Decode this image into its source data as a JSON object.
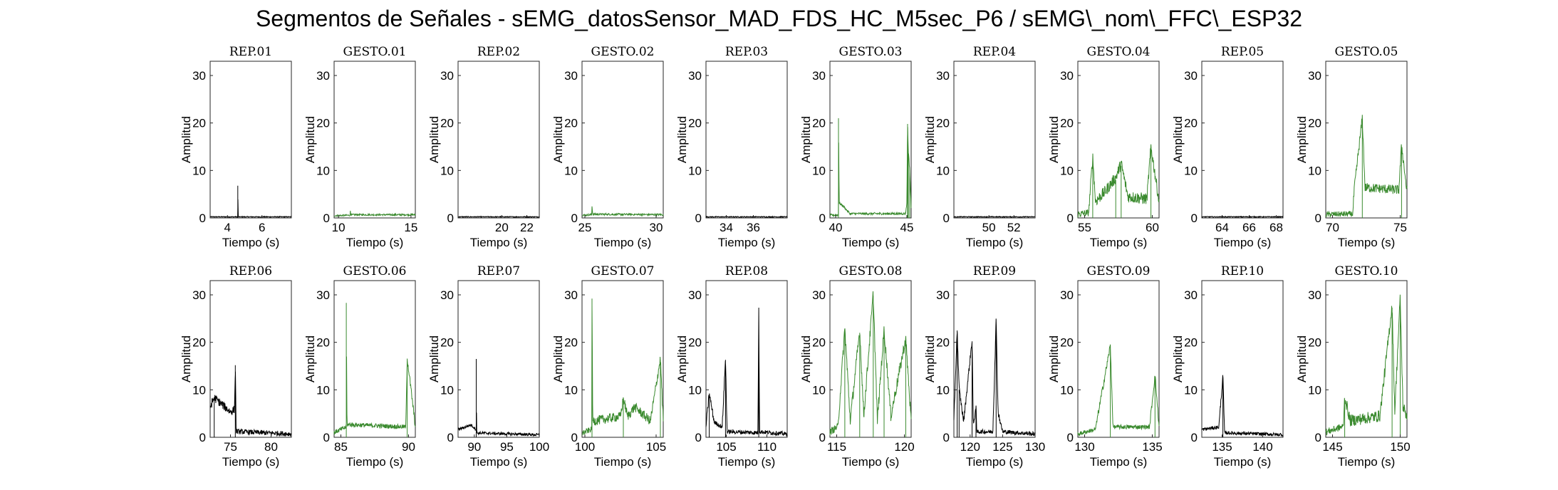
{
  "title": "Segmentos de Señales - sEMG_datosSensor_MAD_FDS_HC_M5sec_P6 / sEMG\\_nom\\_FFC\\_ESP32",
  "colors": {
    "rep": "#000000",
    "gesto": "#3a8a2e"
  },
  "chart_data": [
    {
      "type": "line",
      "title": "REP_01",
      "kind": "rep",
      "xlabel": "Tiempo (s)",
      "ylabel": "Amplitud",
      "xlim": [
        3,
        7.7
      ],
      "ylim": [
        0,
        33
      ],
      "xticks": [
        4,
        6
      ],
      "yticks": [
        0,
        10,
        20,
        30
      ],
      "noise": 0.3,
      "points": [
        [
          3,
          0.2
        ],
        [
          4.6,
          0.2
        ],
        [
          4.6,
          6.8
        ],
        [
          4.62,
          0.2
        ],
        [
          7.7,
          0.2
        ]
      ]
    },
    {
      "type": "line",
      "title": "GESTO_01",
      "kind": "gesto",
      "xlabel": "Tiempo (s)",
      "ylabel": "Amplitud",
      "xlim": [
        9.7,
        15.3
      ],
      "ylim": [
        0,
        33
      ],
      "xticks": [
        10,
        15
      ],
      "yticks": [
        0,
        10,
        20,
        30
      ],
      "noise": 0.6,
      "points": [
        [
          9.7,
          0.4
        ],
        [
          10.8,
          0.5
        ],
        [
          10.8,
          2.0
        ],
        [
          10.85,
          0.6
        ],
        [
          15.3,
          0.6
        ]
      ]
    },
    {
      "type": "line",
      "title": "REP_02",
      "kind": "rep",
      "xlabel": "Tiempo (s)",
      "ylabel": "Amplitud",
      "xlim": [
        16.5,
        23
      ],
      "ylim": [
        0,
        33
      ],
      "xticks": [
        20,
        22
      ],
      "yticks": [
        0,
        10,
        20,
        30
      ],
      "noise": 0.3,
      "points": [
        [
          16.5,
          0.2
        ],
        [
          23,
          0.2
        ]
      ]
    },
    {
      "type": "line",
      "title": "GESTO_02",
      "kind": "gesto",
      "xlabel": "Tiempo (s)",
      "ylabel": "Amplitud",
      "xlim": [
        24.8,
        30.5
      ],
      "ylim": [
        0,
        33
      ],
      "xticks": [
        25,
        30
      ],
      "yticks": [
        0,
        10,
        20,
        30
      ],
      "noise": 0.7,
      "points": [
        [
          24.8,
          0.5
        ],
        [
          25.5,
          0.6
        ],
        [
          25.5,
          2.5
        ],
        [
          25.55,
          0.7
        ],
        [
          30.5,
          0.6
        ]
      ]
    },
    {
      "type": "line",
      "title": "REP_03",
      "kind": "rep",
      "xlabel": "Tiempo (s)",
      "ylabel": "Amplitud",
      "xlim": [
        32.5,
        38.5
      ],
      "ylim": [
        0,
        33
      ],
      "xticks": [
        34,
        36
      ],
      "yticks": [
        0,
        10,
        20,
        30
      ],
      "noise": 0.3,
      "points": [
        [
          32.5,
          0.2
        ],
        [
          38.5,
          0.2
        ]
      ]
    },
    {
      "type": "line",
      "title": "GESTO_03",
      "kind": "gesto",
      "xlabel": "Tiempo (s)",
      "ylabel": "Amplitud",
      "xlim": [
        39.6,
        45.3
      ],
      "ylim": [
        0,
        33
      ],
      "xticks": [
        40,
        45
      ],
      "yticks": [
        0,
        10,
        20,
        30
      ],
      "noise": 0.8,
      "points": [
        [
          39.6,
          0.5
        ],
        [
          40.2,
          0.5
        ],
        [
          40.2,
          21
        ],
        [
          40.25,
          3
        ],
        [
          40.5,
          2.5
        ],
        [
          41,
          0.8
        ],
        [
          44.9,
          0.8
        ],
        [
          45,
          3
        ],
        [
          45.05,
          19.8
        ],
        [
          45.1,
          14
        ],
        [
          45.2,
          10
        ],
        [
          45.3,
          2
        ]
      ]
    },
    {
      "type": "line",
      "title": "REP_04",
      "kind": "rep",
      "xlabel": "Tiempo (s)",
      "ylabel": "Amplitud",
      "xlim": [
        47.2,
        53.7
      ],
      "ylim": [
        0,
        33
      ],
      "xticks": [
        50,
        52
      ],
      "yticks": [
        0,
        10,
        20,
        30
      ],
      "noise": 0.3,
      "points": [
        [
          47.2,
          0.2
        ],
        [
          53.7,
          0.2
        ]
      ]
    },
    {
      "type": "line",
      "title": "GESTO_04",
      "kind": "gesto",
      "xlabel": "Tiempo (s)",
      "ylabel": "Amplitud",
      "xlim": [
        54.5,
        60.5
      ],
      "ylim": [
        0,
        33
      ],
      "xticks": [
        55,
        60
      ],
      "yticks": [
        0,
        10,
        20,
        30
      ],
      "noise": 2.5,
      "points": [
        [
          54.5,
          0.5
        ],
        [
          55.3,
          0.8
        ],
        [
          55.6,
          12.5
        ],
        [
          55.8,
          3
        ],
        [
          56.5,
          5
        ],
        [
          57.3,
          8
        ],
        [
          57.7,
          11
        ],
        [
          58.2,
          4
        ],
        [
          59.6,
          3.5
        ],
        [
          59.9,
          14.5
        ],
        [
          60.5,
          3
        ]
      ]
    },
    {
      "type": "line",
      "title": "REP_05",
      "kind": "rep",
      "xlabel": "Tiempo (s)",
      "ylabel": "Amplitud",
      "xlim": [
        62.5,
        68.5
      ],
      "ylim": [
        0,
        33
      ],
      "xticks": [
        64,
        66,
        68
      ],
      "yticks": [
        0,
        10,
        20,
        30
      ],
      "noise": 0.3,
      "points": [
        [
          62.5,
          0.2
        ],
        [
          68.5,
          0.2
        ]
      ]
    },
    {
      "type": "line",
      "title": "GESTO_05",
      "kind": "gesto",
      "xlabel": "Tiempo (s)",
      "ylabel": "Amplitud",
      "xlim": [
        69.5,
        75.5
      ],
      "ylim": [
        0,
        33
      ],
      "xticks": [
        70,
        75
      ],
      "yticks": [
        0,
        10,
        20,
        30
      ],
      "noise": 2.0,
      "points": [
        [
          69.5,
          0.5
        ],
        [
          71.5,
          0.6
        ],
        [
          71.6,
          5.5
        ],
        [
          72.2,
          20.7
        ],
        [
          72.4,
          6
        ],
        [
          74.9,
          5.5
        ],
        [
          75.1,
          15
        ],
        [
          75.5,
          5
        ]
      ]
    },
    {
      "type": "line",
      "title": "REP_06",
      "kind": "rep",
      "xlabel": "Tiempo (s)",
      "ylabel": "Amplitud",
      "xlim": [
        72.5,
        82.5
      ],
      "ylim": [
        0,
        33
      ],
      "xticks": [
        75,
        80
      ],
      "yticks": [
        0,
        10,
        20,
        30
      ],
      "noise": 1.8,
      "points": [
        [
          72.5,
          6
        ],
        [
          73,
          8
        ],
        [
          75,
          5
        ],
        [
          75.5,
          5.5
        ],
        [
          75.6,
          15.2
        ],
        [
          75.7,
          1
        ],
        [
          82.5,
          0.5
        ]
      ]
    },
    {
      "type": "line",
      "title": "GESTO_06",
      "kind": "gesto",
      "xlabel": "Tiempo (s)",
      "ylabel": "Amplitud",
      "xlim": [
        84.5,
        90.5
      ],
      "ylim": [
        0,
        33
      ],
      "xticks": [
        85,
        90
      ],
      "yticks": [
        0,
        10,
        20,
        30
      ],
      "noise": 1.6,
      "points": [
        [
          84.5,
          0.8
        ],
        [
          85.4,
          2
        ],
        [
          85.4,
          28.3
        ],
        [
          85.45,
          2.5
        ],
        [
          89.8,
          2
        ],
        [
          89.9,
          16.5
        ],
        [
          90.5,
          2
        ]
      ]
    },
    {
      "type": "line",
      "title": "REP_07",
      "kind": "rep",
      "xlabel": "Tiempo (s)",
      "ylabel": "Amplitud",
      "xlim": [
        87.5,
        100
      ],
      "ylim": [
        0,
        33
      ],
      "xticks": [
        90,
        95,
        100
      ],
      "yticks": [
        0,
        10,
        20,
        30
      ],
      "noise": 1.0,
      "points": [
        [
          87.5,
          1.5
        ],
        [
          89.5,
          2.5
        ],
        [
          90.3,
          1.5
        ],
        [
          90.3,
          16.5
        ],
        [
          90.35,
          0.8
        ],
        [
          100,
          0.4
        ]
      ]
    },
    {
      "type": "line",
      "title": "GESTO_07",
      "kind": "gesto",
      "xlabel": "Tiempo (s)",
      "ylabel": "Amplitud",
      "xlim": [
        99.8,
        105.5
      ],
      "ylim": [
        0,
        33
      ],
      "xticks": [
        100,
        105
      ],
      "yticks": [
        0,
        10,
        20,
        30
      ],
      "noise": 2.0,
      "points": [
        [
          99.8,
          0.6
        ],
        [
          100.5,
          1.5
        ],
        [
          100.5,
          29.2
        ],
        [
          100.55,
          3
        ],
        [
          102.5,
          4
        ],
        [
          102.7,
          7.8
        ],
        [
          103,
          4
        ],
        [
          103.5,
          6
        ],
        [
          104.6,
          3
        ],
        [
          105.3,
          16.2
        ],
        [
          105.5,
          3
        ]
      ]
    },
    {
      "type": "line",
      "title": "REP_08",
      "kind": "rep",
      "xlabel": "Tiempo (s)",
      "ylabel": "Amplitud",
      "xlim": [
        102.5,
        112.5
      ],
      "ylim": [
        0,
        33
      ],
      "xticks": [
        105,
        110
      ],
      "yticks": [
        0,
        10,
        20,
        30
      ],
      "noise": 1.5,
      "points": [
        [
          102.5,
          2
        ],
        [
          102.9,
          9
        ],
        [
          103.5,
          3
        ],
        [
          104.5,
          2
        ],
        [
          104.9,
          16.3
        ],
        [
          105.1,
          1
        ],
        [
          108.9,
          0.8
        ],
        [
          109,
          27.3
        ],
        [
          109.1,
          1
        ],
        [
          112.5,
          0.5
        ]
      ]
    },
    {
      "type": "line",
      "title": "GESTO_08",
      "kind": "gesto",
      "xlabel": "Tiempo (s)",
      "ylabel": "Amplitud",
      "xlim": [
        114.5,
        120.5
      ],
      "ylim": [
        0,
        33
      ],
      "xticks": [
        115,
        120
      ],
      "yticks": [
        0,
        10,
        20,
        30
      ],
      "noise": 2.5,
      "points": [
        [
          114.5,
          0.8
        ],
        [
          115.1,
          2
        ],
        [
          115.6,
          22.5
        ],
        [
          116,
          3
        ],
        [
          116.7,
          22
        ],
        [
          117,
          4
        ],
        [
          117.7,
          29.8
        ],
        [
          118,
          3
        ],
        [
          118.5,
          22.3
        ],
        [
          119,
          4
        ],
        [
          120.1,
          20.3
        ],
        [
          120.5,
          3
        ]
      ]
    },
    {
      "type": "line",
      "title": "REP_09",
      "kind": "rep",
      "xlabel": "Tiempo (s)",
      "ylabel": "Amplitud",
      "xlim": [
        117.5,
        130
      ],
      "ylim": [
        0,
        33
      ],
      "xticks": [
        120,
        125,
        130
      ],
      "yticks": [
        0,
        10,
        20,
        30
      ],
      "noise": 1.5,
      "points": [
        [
          117.5,
          3
        ],
        [
          118,
          22.5
        ],
        [
          118.3,
          10
        ],
        [
          119,
          3
        ],
        [
          120.3,
          20.2
        ],
        [
          120.5,
          2
        ],
        [
          120.9,
          6.5
        ],
        [
          121,
          1
        ],
        [
          123.5,
          1
        ],
        [
          124,
          24.7
        ],
        [
          124.3,
          5
        ],
        [
          125,
          1
        ],
        [
          130,
          0.5
        ]
      ]
    },
    {
      "type": "line",
      "title": "GESTO_09",
      "kind": "gesto",
      "xlabel": "Tiempo (s)",
      "ylabel": "Amplitud",
      "xlim": [
        129.5,
        135.5
      ],
      "ylim": [
        0,
        33
      ],
      "xticks": [
        130,
        135
      ],
      "yticks": [
        0,
        10,
        20,
        30
      ],
      "noise": 1.5,
      "points": [
        [
          129.5,
          0.5
        ],
        [
          130.8,
          1.5
        ],
        [
          131.9,
          19
        ],
        [
          132.1,
          2
        ],
        [
          134.8,
          2
        ],
        [
          135.2,
          12.8
        ],
        [
          135.5,
          2
        ]
      ]
    },
    {
      "type": "line",
      "title": "REP_10",
      "kind": "rep",
      "xlabel": "Tiempo (s)",
      "ylabel": "Amplitud",
      "xlim": [
        132.5,
        142.5
      ],
      "ylim": [
        0,
        33
      ],
      "xticks": [
        135,
        140
      ],
      "yticks": [
        0,
        10,
        20,
        30
      ],
      "noise": 1.2,
      "points": [
        [
          132.5,
          1.5
        ],
        [
          134.6,
          2
        ],
        [
          135.1,
          12.8
        ],
        [
          135.3,
          0.8
        ],
        [
          142.5,
          0.4
        ]
      ]
    },
    {
      "type": "line",
      "title": "GESTO_10",
      "kind": "gesto",
      "xlabel": "Tiempo (s)",
      "ylabel": "Amplitud",
      "xlim": [
        144.5,
        150.5
      ],
      "ylim": [
        0,
        33
      ],
      "xticks": [
        145,
        150
      ],
      "yticks": [
        0,
        10,
        20,
        30
      ],
      "noise": 2.5,
      "points": [
        [
          144.5,
          0.8
        ],
        [
          145.8,
          2
        ],
        [
          145.9,
          8
        ],
        [
          146.3,
          3
        ],
        [
          148.5,
          4
        ],
        [
          149.4,
          27.3
        ],
        [
          149.6,
          5
        ],
        [
          150,
          29
        ],
        [
          150.2,
          6
        ],
        [
          150.5,
          4
        ]
      ]
    }
  ]
}
